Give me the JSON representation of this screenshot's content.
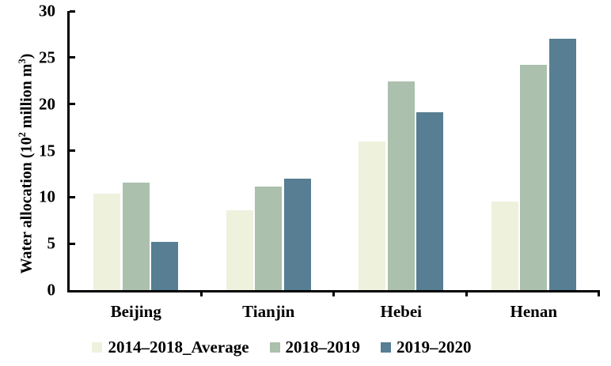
{
  "chart_data": {
    "type": "bar",
    "title": "",
    "ylabel": "Water allocation (10² million m³)",
    "ylabel_parts": {
      "p1": "Water allocation (10",
      "s1": "2",
      "p2": " million m",
      "s2": "3",
      "p3": ")"
    },
    "xlabel": "",
    "categories": [
      "Beijing",
      "Tianjin",
      "Hebei",
      "Henan"
    ],
    "series": [
      {
        "name": "2014–2018_Average",
        "color": "#eef2dd",
        "values": [
          10.4,
          8.6,
          16.0,
          9.5
        ]
      },
      {
        "name": "2018–2019",
        "color": "#abc0ad",
        "values": [
          11.6,
          11.1,
          22.4,
          24.2
        ]
      },
      {
        "name": "2019–2020",
        "color": "#577e92",
        "values": [
          5.2,
          12.0,
          19.1,
          27.0
        ]
      }
    ],
    "yticks": [
      0,
      5,
      10,
      15,
      20,
      25,
      30
    ],
    "ylim": [
      0,
      30
    ],
    "grid": false,
    "legend_position": "bottom",
    "axis_color": "#000000",
    "text_color": "#000000",
    "background_color": "#ffffff"
  }
}
